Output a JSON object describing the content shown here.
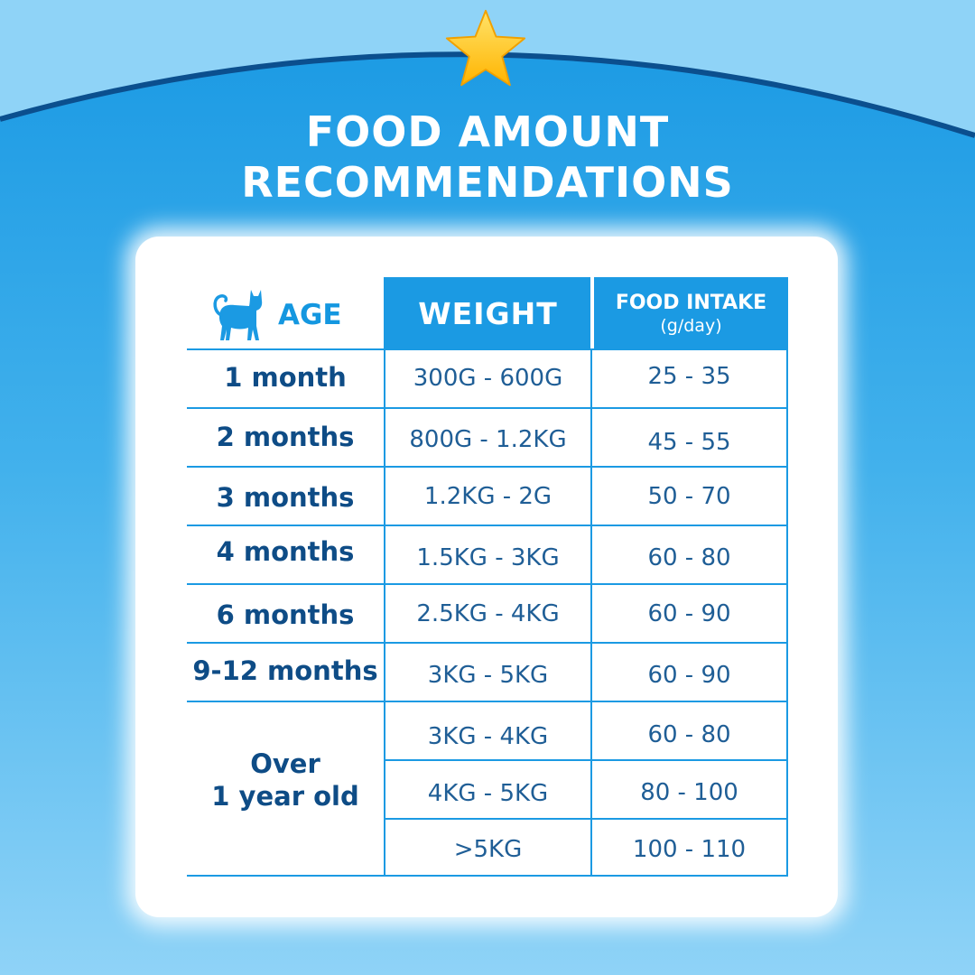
{
  "title": {
    "line1": "FOOD AMOUNT",
    "line2": "RECOMMENDATIONS"
  },
  "icons": {
    "star": "star-icon",
    "cat": "cat-silhouette-icon"
  },
  "colors": {
    "accent": "#1b9ae3",
    "dark_text": "#0e4c86",
    "band": "#1f9fe5",
    "sky": "#8fd3f7",
    "star": "#ffc21f"
  },
  "table": {
    "headers": {
      "age": "AGE",
      "weight": "WEIGHT",
      "food": "FOOD INTAKE",
      "food_unit": "(g/day)"
    },
    "rows": [
      {
        "age": "1 month",
        "weight": "300G - 600G",
        "food": "25 - 35"
      },
      {
        "age": "2 months",
        "weight": "800G - 1.2KG",
        "food": "45 - 55"
      },
      {
        "age": "3 months",
        "weight": "1.2KG - 2G",
        "food": "50 - 70"
      },
      {
        "age": "4 months",
        "weight": "1.5KG - 3KG",
        "food": "60 - 80"
      },
      {
        "age": "6 months",
        "weight": "2.5KG - 4KG",
        "food": "60 - 90"
      },
      {
        "age": "9-12 months",
        "weight": "3KG - 5KG",
        "food": "60 - 90"
      }
    ],
    "adult": {
      "age_line1": "Over",
      "age_line2": "1 year old",
      "rows": [
        {
          "weight": "3KG - 4KG",
          "food": "60 - 80"
        },
        {
          "weight": "4KG - 5KG",
          "food": "80 - 100"
        },
        {
          "weight": ">5KG",
          "food": "100 - 110"
        }
      ]
    }
  }
}
